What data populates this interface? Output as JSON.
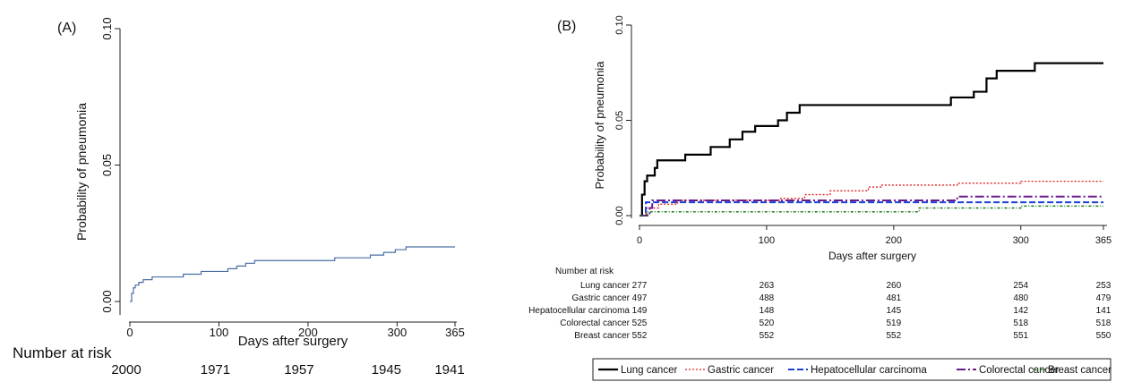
{
  "chart_data": [
    {
      "type": "line",
      "panel_label": "(A)",
      "xlabel": "Days after surgery",
      "ylabel": "Probability of pneumonia",
      "xlim": [
        0,
        365
      ],
      "ylim": [
        0,
        0.1
      ],
      "x_ticks": [
        0,
        100,
        200,
        300,
        365
      ],
      "y_ticks": [
        "0.00",
        "0.05",
        "0.10"
      ],
      "grid": false,
      "series": [
        {
          "color": "#4a6fa5",
          "step": true,
          "points": [
            [
              0,
              0
            ],
            [
              2,
              0.003
            ],
            [
              4,
              0.005
            ],
            [
              6,
              0.006
            ],
            [
              10,
              0.007
            ],
            [
              15,
              0.008
            ],
            [
              25,
              0.009
            ],
            [
              40,
              0.009
            ],
            [
              60,
              0.01
            ],
            [
              80,
              0.011
            ],
            [
              100,
              0.011
            ],
            [
              110,
              0.012
            ],
            [
              120,
              0.013
            ],
            [
              130,
              0.014
            ],
            [
              140,
              0.015
            ],
            [
              200,
              0.015
            ],
            [
              230,
              0.016
            ],
            [
              270,
              0.017
            ],
            [
              285,
              0.018
            ],
            [
              298,
              0.019
            ],
            [
              310,
              0.02
            ],
            [
              365,
              0.02
            ]
          ]
        }
      ],
      "risk_table": {
        "title": "Number at risk",
        "x": [
          0,
          100,
          200,
          300,
          365
        ],
        "rows": [
          {
            "label": "",
            "values": [
              "2000",
              "1971",
              "1957",
              "1945",
              "1941"
            ]
          }
        ]
      }
    },
    {
      "type": "line",
      "panel_label": "(B)",
      "xlabel": "Days after surgery",
      "ylabel": "Probability of pneumonia",
      "xlim": [
        0,
        365
      ],
      "ylim": [
        0,
        0.1
      ],
      "x_ticks": [
        0,
        100,
        200,
        300,
        365
      ],
      "y_ticks": [
        "0.00",
        "0.05",
        "0.10"
      ],
      "grid": false,
      "legend_position": "bottom",
      "series": [
        {
          "name": "Lung cancer",
          "color": "#000000",
          "dash": "none",
          "width": 2.2,
          "points": [
            [
              0,
              0
            ],
            [
              2,
              0.011
            ],
            [
              4,
              0.018
            ],
            [
              6,
              0.021
            ],
            [
              10,
              0.021
            ],
            [
              12,
              0.025
            ],
            [
              14,
              0.029
            ],
            [
              35,
              0.029
            ],
            [
              36,
              0.032
            ],
            [
              55,
              0.032
            ],
            [
              56,
              0.036
            ],
            [
              70,
              0.036
            ],
            [
              71,
              0.04
            ],
            [
              80,
              0.04
            ],
            [
              81,
              0.044
            ],
            [
              90,
              0.044
            ],
            [
              91,
              0.047
            ],
            [
              108,
              0.047
            ],
            [
              109,
              0.05
            ],
            [
              115,
              0.05
            ],
            [
              116,
              0.054
            ],
            [
              125,
              0.054
            ],
            [
              126,
              0.058
            ],
            [
              244,
              0.058
            ],
            [
              245,
              0.062
            ],
            [
              262,
              0.062
            ],
            [
              263,
              0.065
            ],
            [
              272,
              0.065
            ],
            [
              273,
              0.072
            ],
            [
              280,
              0.072
            ],
            [
              281,
              0.076
            ],
            [
              310,
              0.076
            ],
            [
              311,
              0.08
            ],
            [
              365,
              0.08
            ]
          ]
        },
        {
          "name": "Gastric cancer",
          "color": "#e02020",
          "dash": "2,2",
          "width": 1.3,
          "points": [
            [
              0,
              0
            ],
            [
              5,
              0.004
            ],
            [
              15,
              0.006
            ],
            [
              30,
              0.008
            ],
            [
              100,
              0.008
            ],
            [
              110,
              0.009
            ],
            [
              130,
              0.011
            ],
            [
              150,
              0.013
            ],
            [
              180,
              0.015
            ],
            [
              190,
              0.016
            ],
            [
              240,
              0.016
            ],
            [
              250,
              0.017
            ],
            [
              300,
              0.018
            ],
            [
              365,
              0.018
            ]
          ]
        },
        {
          "name": "Hepatocellular carcinoma",
          "color": "#1a3fd6",
          "dash": "7,3",
          "width": 2,
          "points": [
            [
              0,
              0
            ],
            [
              5,
              0.007
            ],
            [
              250,
              0.007
            ],
            [
              310,
              0.007
            ],
            [
              365,
              0.007
            ]
          ]
        },
        {
          "name": "Colorectal cancer",
          "color": "#6b1a8a",
          "dash": "10,3,2,3",
          "width": 2,
          "points": [
            [
              0,
              0
            ],
            [
              8,
              0.004
            ],
            [
              10,
              0.008
            ],
            [
              248,
              0.008
            ],
            [
              250,
              0.01
            ],
            [
              365,
              0.01
            ]
          ]
        },
        {
          "name": "Breast cancer",
          "color": "#1f7a1f",
          "dash": "3,2,1,2",
          "width": 1.5,
          "points": [
            [
              0,
              0
            ],
            [
              6,
              0.002
            ],
            [
              218,
              0.002
            ],
            [
              220,
              0.004
            ],
            [
              290,
              0.004
            ],
            [
              300,
              0.005
            ],
            [
              365,
              0.005
            ]
          ]
        }
      ],
      "risk_table": {
        "title": "Number at risk",
        "x": [
          0,
          100,
          200,
          300,
          365
        ],
        "rows": [
          {
            "label": "Lung cancer",
            "values": [
              "277",
              "263",
              "260",
              "254",
              "253"
            ]
          },
          {
            "label": "Gastric cancer",
            "values": [
              "497",
              "488",
              "481",
              "480",
              "479"
            ]
          },
          {
            "label": "Hepatocellular carcinoma",
            "values": [
              "149",
              "148",
              "145",
              "142",
              "141"
            ]
          },
          {
            "label": "Colorectal cancer",
            "values": [
              "525",
              "520",
              "519",
              "518",
              "518"
            ]
          },
          {
            "label": "Breast cancer",
            "values": [
              "552",
              "552",
              "552",
              "551",
              "550"
            ]
          }
        ]
      }
    }
  ]
}
